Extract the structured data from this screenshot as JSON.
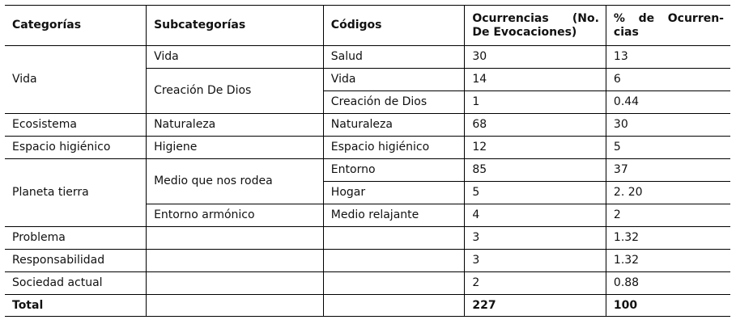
{
  "headers": {
    "categorias": "Categorías",
    "subcategorias": "Subcategorías",
    "codigos": "Códigos",
    "ocurrencias": "Ocurrencias (No. De Evocaciones)",
    "porcentaje": "% de Ocurren-cias"
  },
  "rows": {
    "vida": {
      "categoria": "Vida",
      "sub_vida": "Vida",
      "sub_creacion": "Creación De Dios",
      "r1": {
        "codigo": "Salud",
        "ocurrencias": "30",
        "porcentaje": "13"
      },
      "r2": {
        "codigo": "Vida",
        "ocurrencias": "14",
        "porcentaje": "6"
      },
      "r3": {
        "codigo": "Creación de Dios",
        "ocurrencias": "1",
        "porcentaje": "0.44"
      }
    },
    "ecosistema": {
      "categoria": "Ecosistema",
      "subcategoria": "Naturaleza",
      "codigo": "Naturaleza",
      "ocurrencias": "68",
      "porcentaje": "30"
    },
    "higienico": {
      "categoria": "Espacio higiénico",
      "subcategoria": "Higiene",
      "codigo": "Espacio higiénico",
      "ocurrencias": "12",
      "porcentaje": "5"
    },
    "planeta": {
      "categoria": "Planeta tierra",
      "sub_medio": "Medio que nos rodea",
      "sub_entorno": "Entorno armónico",
      "r1": {
        "codigo": "Entorno",
        "ocurrencias": "85",
        "porcentaje": "37"
      },
      "r2": {
        "codigo": "Hogar",
        "ocurrencias": "5",
        "porcentaje": "2. 20"
      },
      "r3": {
        "codigo": "Medio relajante",
        "ocurrencias": "4",
        "porcentaje": "2"
      }
    },
    "problema": {
      "categoria": "Problema",
      "ocurrencias": "3",
      "porcentaje": "1.32"
    },
    "responsabilidad": {
      "categoria": "Responsabilidad",
      "ocurrencias": "3",
      "porcentaje": "1.32"
    },
    "sociedad": {
      "categoria": "Sociedad actual",
      "ocurrencias": "2",
      "porcentaje": "0.88"
    }
  },
  "total": {
    "label": "Total",
    "ocurrencias": "227",
    "porcentaje": "100"
  }
}
